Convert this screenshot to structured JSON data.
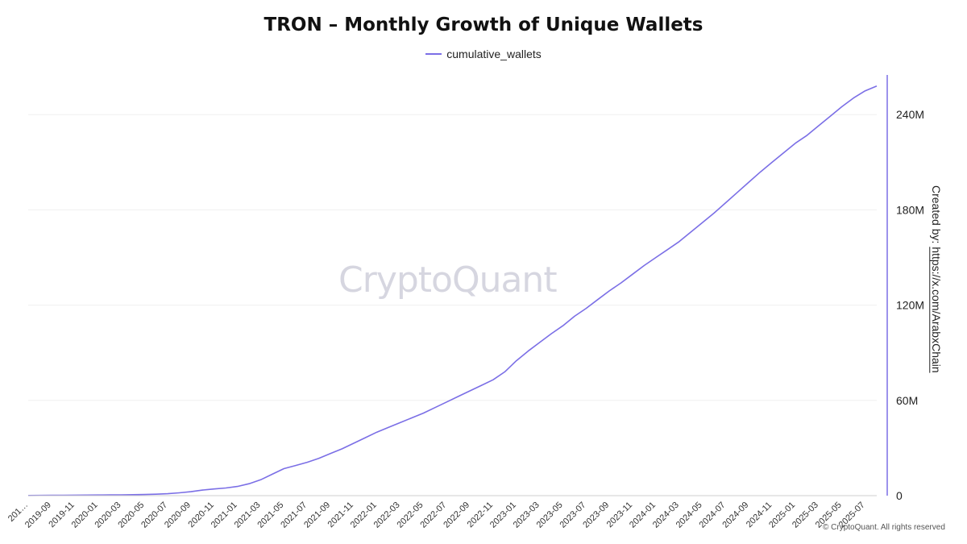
{
  "chart_data": {
    "type": "line",
    "title": "TRON – Monthly Growth of Unique Wallets",
    "xlabel": "",
    "ylabel": "",
    "legend": "top-center",
    "grid": true,
    "ylim": [
      0,
      265000000
    ],
    "y_axis_side": "right",
    "yticks": [
      0,
      60000000,
      120000000,
      180000000,
      240000000
    ],
    "ytick_labels": [
      "0",
      "60M",
      "120M",
      "180M",
      "240M"
    ],
    "xtick_labels": [
      "201…",
      "2019-09",
      "2019-11",
      "2020-01",
      "2020-03",
      "2020-05",
      "2020-07",
      "2020-09",
      "2020-11",
      "2021-01",
      "2021-03",
      "2021-05",
      "2021-07",
      "2021-09",
      "2021-11",
      "2022-01",
      "2022-03",
      "2022-05",
      "2022-07",
      "2022-09",
      "2022-11",
      "2023-01",
      "2023-03",
      "2023-05",
      "2023-07",
      "2023-09",
      "2023-11",
      "2024-01",
      "2024-03",
      "2024-05",
      "2024-07",
      "2024-09",
      "2024-11",
      "2025-01",
      "2025-03",
      "2025-05",
      "2025-07"
    ],
    "x": [
      "2019-07",
      "2019-08",
      "2019-09",
      "2019-10",
      "2019-11",
      "2019-12",
      "2020-01",
      "2020-02",
      "2020-03",
      "2020-04",
      "2020-05",
      "2020-06",
      "2020-07",
      "2020-08",
      "2020-09",
      "2020-10",
      "2020-11",
      "2020-12",
      "2021-01",
      "2021-02",
      "2021-03",
      "2021-04",
      "2021-05",
      "2021-06",
      "2021-07",
      "2021-08",
      "2021-09",
      "2021-10",
      "2021-11",
      "2021-12",
      "2022-01",
      "2022-02",
      "2022-03",
      "2022-04",
      "2022-05",
      "2022-06",
      "2022-07",
      "2022-08",
      "2022-09",
      "2022-10",
      "2022-11",
      "2022-12",
      "2023-01",
      "2023-02",
      "2023-03",
      "2023-04",
      "2023-05",
      "2023-06",
      "2023-07",
      "2023-08",
      "2023-09",
      "2023-10",
      "2023-11",
      "2023-12",
      "2024-01",
      "2024-02",
      "2024-03",
      "2024-04",
      "2024-05",
      "2024-06",
      "2024-07",
      "2024-08",
      "2024-09",
      "2024-10",
      "2024-11",
      "2024-12",
      "2025-01",
      "2025-02",
      "2025-03",
      "2025-04",
      "2025-05",
      "2025-06",
      "2025-07",
      "2025-08"
    ],
    "series": [
      {
        "name": "cumulative_wallets",
        "color": "#7b6fe6",
        "values": [
          100000,
          150000,
          200000,
          250000,
          300000,
          350000,
          400000,
          450000,
          500000,
          600000,
          700000,
          900000,
          1200000,
          1800000,
          2500000,
          3500000,
          4200000,
          4800000,
          5800000,
          7500000,
          10000000,
          13500000,
          17000000,
          19000000,
          21000000,
          23500000,
          26500000,
          29500000,
          33000000,
          36500000,
          40000000,
          43000000,
          46000000,
          49000000,
          52000000,
          55500000,
          59000000,
          62500000,
          66000000,
          69500000,
          73000000,
          78000000,
          85000000,
          91000000,
          96500000,
          102000000,
          107000000,
          113000000,
          118000000,
          123500000,
          129000000,
          134000000,
          139500000,
          145000000,
          150000000,
          155000000,
          160000000,
          166000000,
          172000000,
          178000000,
          184500000,
          191000000,
          197500000,
          204000000,
          210000000,
          216000000,
          222000000,
          227000000,
          233000000,
          239000000,
          245000000,
          250500000,
          255000000,
          258000000
        ]
      }
    ]
  },
  "watermark": "CryptoQuant",
  "credit": {
    "prefix": "Created by: ",
    "link": "https://x.com/ArabxChain"
  },
  "copyright": "© CryptoQuant. All rights reserved"
}
